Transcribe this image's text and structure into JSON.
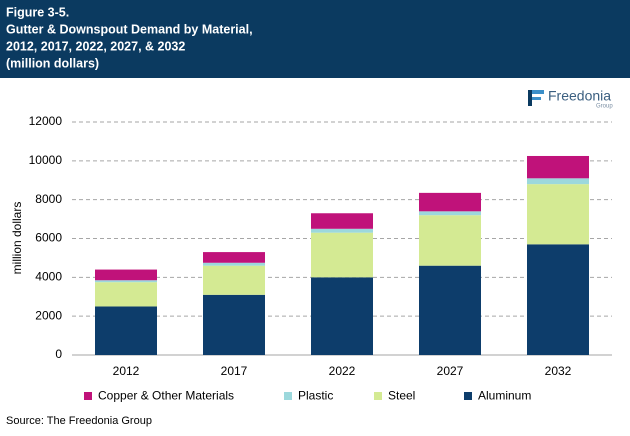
{
  "chart_data": {
    "type": "stacked_bar",
    "title_lines": [
      "Figure 3-5.",
      "Gutter & Downspout Demand by Material,",
      "2012, 2017, 2022, 2027, & 2032",
      "(million dollars)"
    ],
    "logo": {
      "name": "Freedonia",
      "sub": "Group"
    },
    "y_label": "million dollars",
    "categories": [
      "2012",
      "2017",
      "2022",
      "2027",
      "2032"
    ],
    "series": [
      {
        "name": "Aluminum",
        "color": "#0d3d6b",
        "values": [
          2500,
          3100,
          4000,
          4600,
          5700
        ]
      },
      {
        "name": "Steel",
        "color": "#d4ea93",
        "values": [
          1250,
          1500,
          2300,
          2600,
          3100
        ]
      },
      {
        "name": "Plastic",
        "color": "#9cd8dc",
        "values": [
          100,
          150,
          200,
          200,
          300
        ]
      },
      {
        "name": "Copper & Other Materials",
        "color": "#c0127a",
        "values": [
          550,
          550,
          800,
          950,
          1150
        ]
      }
    ],
    "ylim": [
      0,
      12000
    ],
    "yticks": [
      0,
      2000,
      4000,
      6000,
      8000,
      10000,
      12000
    ],
    "grid": true,
    "source": "Source: The Freedonia Group"
  }
}
